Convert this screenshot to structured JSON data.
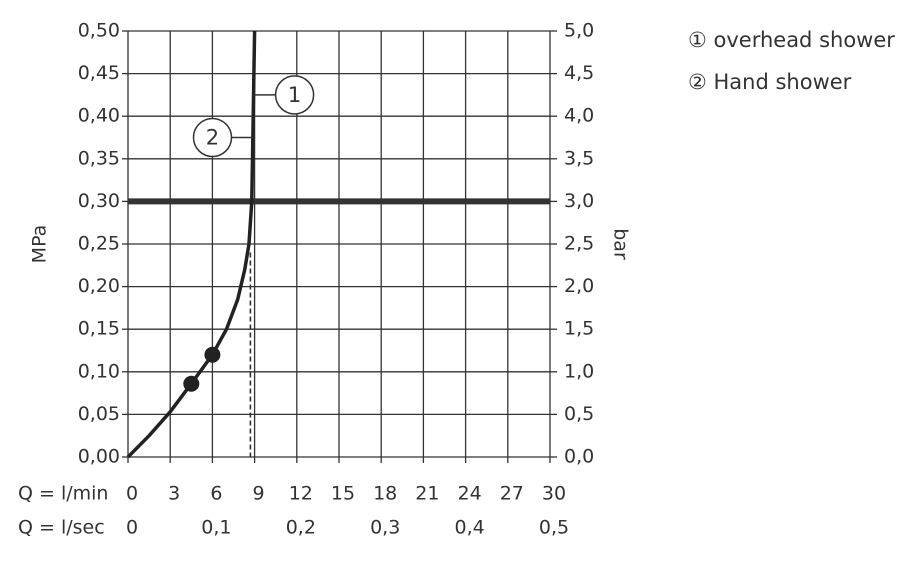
{
  "chart_data": {
    "type": "line",
    "ylabel": "MPa",
    "y2label": "bar",
    "xlabel": "Q = l/min",
    "x2label": "Q = l/sec",
    "xlim": [
      0,
      30
    ],
    "xticks": [
      0,
      3,
      6,
      9,
      12,
      15,
      18,
      21,
      24,
      27,
      30
    ],
    "x2lim": [
      0,
      0.5
    ],
    "x2ticks": [
      0,
      {
        "value": 0.1,
        "label": "0,1"
      },
      {
        "value": 0.2,
        "label": "0,2"
      },
      {
        "value": 0.3,
        "label": "0,3"
      },
      {
        "value": 0.4,
        "label": "0,4"
      },
      {
        "value": 0.5,
        "label": "0,5"
      }
    ],
    "ylim": [
      0,
      0.5
    ],
    "yticks": [
      {
        "value": 0,
        "label": "0,00"
      },
      {
        "value": 0.05,
        "label": "0,05"
      },
      {
        "value": 0.1,
        "label": "0,10"
      },
      {
        "value": 0.15,
        "label": "0,15"
      },
      {
        "value": 0.2,
        "label": "0,20"
      },
      {
        "value": 0.25,
        "label": "0,25"
      },
      {
        "value": 0.3,
        "label": "0,30"
      },
      {
        "value": 0.35,
        "label": "0,35"
      },
      {
        "value": 0.4,
        "label": "0,40"
      },
      {
        "value": 0.45,
        "label": "0,45"
      },
      {
        "value": 0.5,
        "label": "0,50"
      }
    ],
    "y2lim": [
      0,
      5
    ],
    "y2ticks": [
      {
        "value": 0,
        "label": "0,0"
      },
      {
        "value": 0.5,
        "label": "0,5"
      },
      {
        "value": 1,
        "label": "1,0"
      },
      {
        "value": 1.5,
        "label": "1,5"
      },
      {
        "value": 2,
        "label": "2,0"
      },
      {
        "value": 2.5,
        "label": "2,5"
      },
      {
        "value": 3,
        "label": "3,0"
      },
      {
        "value": 3.5,
        "label": "3,5"
      },
      {
        "value": 4,
        "label": "4,0"
      },
      {
        "value": 4.5,
        "label": "4,5"
      },
      {
        "value": 5,
        "label": "5,0"
      }
    ],
    "grid": true,
    "highlight_y": 0.3,
    "dashed_line": {
      "x": 8.7,
      "y": 0.24
    },
    "series": [
      {
        "color": "#222222",
        "x": [
          0,
          1.5,
          3,
          4.5,
          6,
          7,
          7.8,
          8.3,
          8.6,
          8.8,
          8.9,
          9.0
        ],
        "y": [
          0,
          0.025,
          0.053,
          0.086,
          0.12,
          0.15,
          0.185,
          0.22,
          0.25,
          0.3,
          0.4,
          0.5
        ]
      }
    ],
    "markers": {
      "x": [
        4.5,
        6
      ],
      "y": [
        0.086,
        0.12
      ]
    },
    "annotations": [
      {
        "label": "1",
        "x": 9.0,
        "y": 0.425
      },
      {
        "label": "2",
        "x": 8.85,
        "y": 0.375
      }
    ],
    "legend": [
      "① overhead shower",
      "② Hand shower"
    ]
  }
}
